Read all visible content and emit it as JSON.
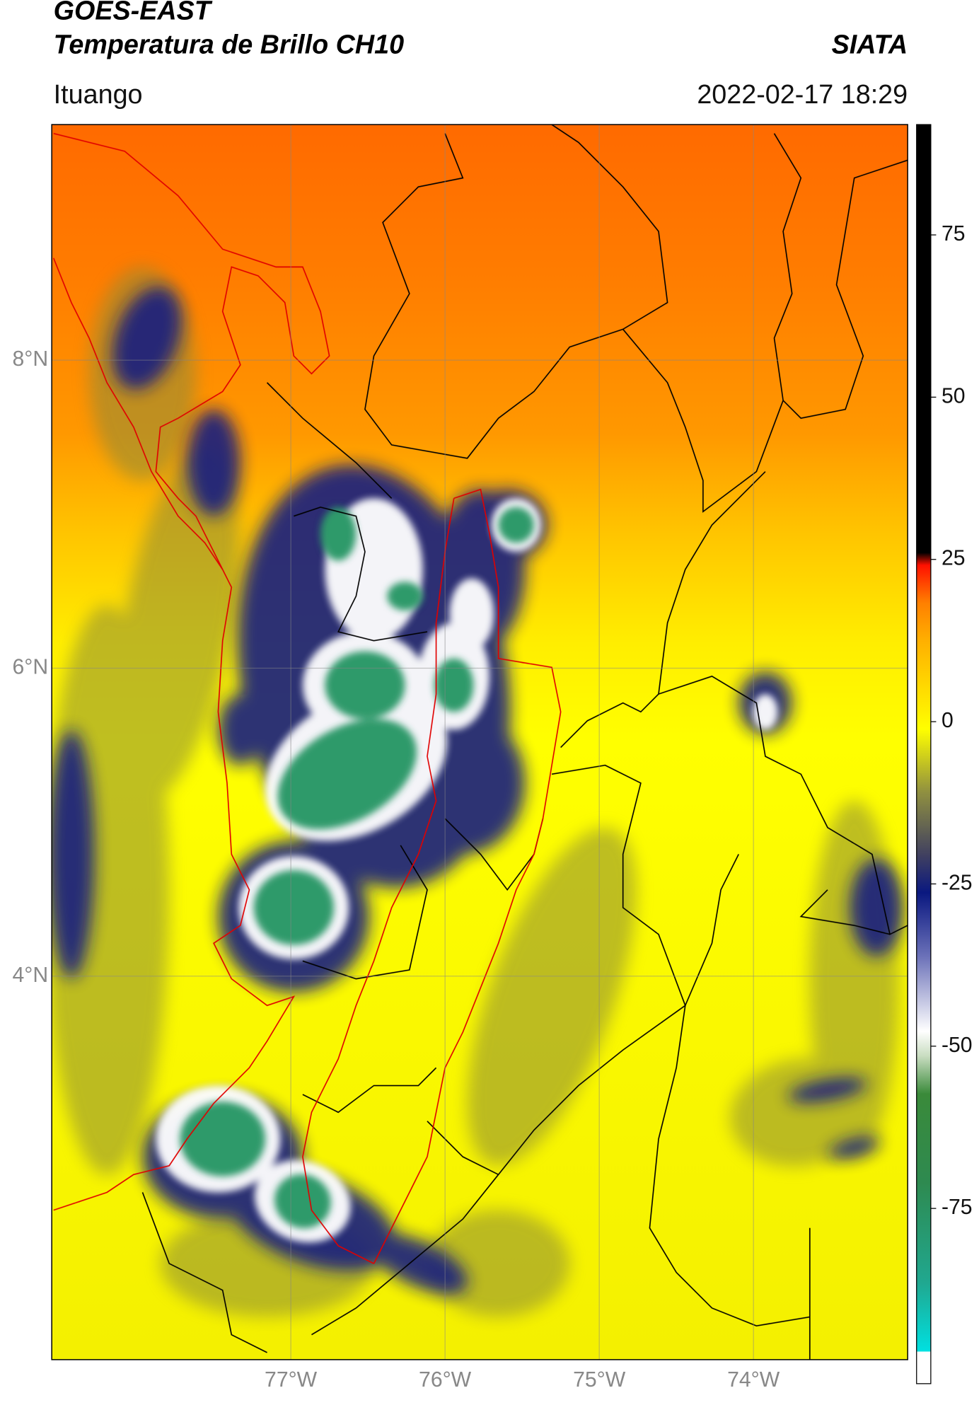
{
  "header": {
    "title": "GOES-EAST",
    "subtitle": "Temperatura de Brillo CH10",
    "brand": "SIATA",
    "location": "Ituango",
    "datetime": "2022-02-17 18:29"
  },
  "map": {
    "lon_range": [
      -78.55,
      -73.0
    ],
    "lat_range": [
      1.51,
      9.53
    ],
    "lon_ticks": [
      {
        "value": -77,
        "label": "77°W"
      },
      {
        "value": -76,
        "label": "76°W"
      },
      {
        "value": -75,
        "label": "75°W"
      },
      {
        "value": -74,
        "label": "74°W"
      }
    ],
    "lat_ticks": [
      {
        "value": 8,
        "label": "8°N"
      },
      {
        "value": 6,
        "label": "6°N"
      },
      {
        "value": 4,
        "label": "4°N"
      }
    ],
    "grid": true
  },
  "colorbar": {
    "range": [
      -102,
      92
    ],
    "ticks": [
      75,
      50,
      25,
      0,
      -25,
      -50,
      -75
    ]
  }
}
